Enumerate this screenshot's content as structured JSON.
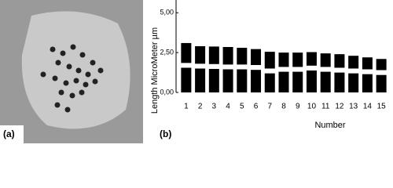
{
  "panel_labels": [
    "(a)",
    "(b)"
  ],
  "chart_data": {
    "type": "bar",
    "stacked": true,
    "y_label": "Length MicroMeter µm",
    "x_label": "Number",
    "categories": [
      "1",
      "2",
      "3",
      "4",
      "5",
      "6",
      "7",
      "8",
      "9",
      "10",
      "11",
      "12",
      "13",
      "14",
      "15"
    ],
    "series": [
      {
        "color": "#000000",
        "values": [
          1.55,
          1.5,
          1.48,
          1.45,
          1.45,
          1.42,
          1.2,
          1.3,
          1.3,
          1.38,
          1.3,
          1.25,
          1.2,
          1.15,
          1.1
        ]
      },
      {
        "color": "#ffffff",
        "values": [
          0.3,
          0.3,
          0.3,
          0.3,
          0.3,
          0.3,
          0.3,
          0.3,
          0.3,
          0.3,
          0.3,
          0.3,
          0.3,
          0.3,
          0.3
        ]
      },
      {
        "color": "#000000",
        "values": [
          1.25,
          1.1,
          1.1,
          1.1,
          1.05,
          1.0,
          1.05,
          0.9,
          0.9,
          0.85,
          0.85,
          0.85,
          0.8,
          0.75,
          0.7
        ]
      }
    ],
    "ylim": [
      0,
      5.8
    ],
    "yticks": [
      {
        "value": 0,
        "label": "0,00"
      },
      {
        "value": 2.5,
        "label": "2,50"
      },
      {
        "value": 5,
        "label": "5,00"
      }
    ]
  }
}
